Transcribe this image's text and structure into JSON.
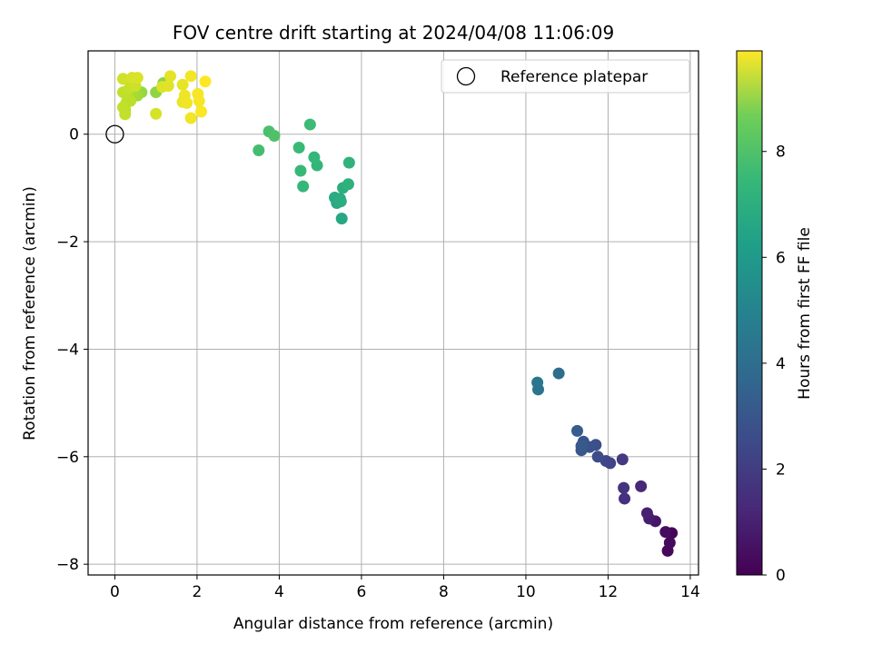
{
  "chart_data": {
    "type": "scatter",
    "title": "FOV centre drift starting at 2024/04/08 11:06:09",
    "xlabel": "Angular distance from reference (arcmin)",
    "ylabel": "Rotation from reference (arcmin)",
    "xlim": [
      -0.65,
      14.2
    ],
    "ylim": [
      -8.2,
      1.55
    ],
    "xticks": [
      0,
      2,
      4,
      6,
      8,
      10,
      12,
      14
    ],
    "yticks": [
      0,
      -2,
      -4,
      -6,
      -8
    ],
    "grid": true,
    "legend": {
      "placement": "top-right",
      "entries": [
        "Reference platepar"
      ]
    },
    "reference_point": {
      "x": 0,
      "y": 0
    },
    "colorbar": {
      "label": "Hours from first FF file",
      "range": [
        0,
        9.9
      ],
      "ticks": [
        0,
        2,
        4,
        6,
        8
      ],
      "colormap": "viridis"
    },
    "points": [
      {
        "x": 13.55,
        "y": -7.42,
        "t": 0.1
      },
      {
        "x": 13.45,
        "y": -7.75,
        "t": 0.2
      },
      {
        "x": 13.5,
        "y": -7.6,
        "t": 0.25
      },
      {
        "x": 13.4,
        "y": -7.4,
        "t": 0.35
      },
      {
        "x": 13.15,
        "y": -7.2,
        "t": 0.6
      },
      {
        "x": 13.0,
        "y": -7.15,
        "t": 0.8
      },
      {
        "x": 12.95,
        "y": -7.05,
        "t": 0.9
      },
      {
        "x": 12.8,
        "y": -6.55,
        "t": 1.1
      },
      {
        "x": 12.4,
        "y": -6.78,
        "t": 1.4
      },
      {
        "x": 12.38,
        "y": -6.58,
        "t": 1.5
      },
      {
        "x": 12.35,
        "y": -6.05,
        "t": 1.7
      },
      {
        "x": 12.05,
        "y": -6.12,
        "t": 2.0
      },
      {
        "x": 11.95,
        "y": -6.08,
        "t": 2.1
      },
      {
        "x": 11.75,
        "y": -6.0,
        "t": 2.3
      },
      {
        "x": 11.7,
        "y": -5.78,
        "t": 2.4
      },
      {
        "x": 11.55,
        "y": -5.82,
        "t": 2.5
      },
      {
        "x": 11.4,
        "y": -5.72,
        "t": 2.6
      },
      {
        "x": 11.35,
        "y": -5.88,
        "t": 2.7
      },
      {
        "x": 11.35,
        "y": -5.8,
        "t": 2.75
      },
      {
        "x": 11.25,
        "y": -5.52,
        "t": 2.9
      },
      {
        "x": 10.8,
        "y": -4.45,
        "t": 3.5
      },
      {
        "x": 10.3,
        "y": -4.75,
        "t": 3.8
      },
      {
        "x": 10.28,
        "y": -4.62,
        "t": 3.9
      },
      {
        "x": 5.52,
        "y": -1.57,
        "t": 5.9
      },
      {
        "x": 5.4,
        "y": -1.28,
        "t": 6.0
      },
      {
        "x": 5.35,
        "y": -1.18,
        "t": 6.05
      },
      {
        "x": 5.48,
        "y": -1.2,
        "t": 6.1
      },
      {
        "x": 5.5,
        "y": -1.25,
        "t": 6.15
      },
      {
        "x": 5.55,
        "y": -1.0,
        "t": 6.2
      },
      {
        "x": 5.68,
        "y": -0.93,
        "t": 6.3
      },
      {
        "x": 5.7,
        "y": -0.53,
        "t": 6.4
      },
      {
        "x": 4.92,
        "y": -0.58,
        "t": 6.5
      },
      {
        "x": 4.85,
        "y": -0.43,
        "t": 6.55
      },
      {
        "x": 4.58,
        "y": -0.97,
        "t": 6.6
      },
      {
        "x": 4.52,
        "y": -0.68,
        "t": 6.65
      },
      {
        "x": 4.48,
        "y": -0.25,
        "t": 6.7
      },
      {
        "x": 4.75,
        "y": 0.18,
        "t": 6.75
      },
      {
        "x": 3.5,
        "y": -0.3,
        "t": 6.9
      },
      {
        "x": 3.75,
        "y": 0.05,
        "t": 7.0
      },
      {
        "x": 3.88,
        "y": -0.03,
        "t": 7.1
      },
      {
        "x": 0.65,
        "y": 0.78,
        "t": 8.3
      },
      {
        "x": 1.0,
        "y": 0.78,
        "t": 8.2
      },
      {
        "x": 1.18,
        "y": 0.95,
        "t": 8.1
      },
      {
        "x": 0.55,
        "y": 0.72,
        "t": 8.5
      },
      {
        "x": 0.45,
        "y": 0.8,
        "t": 8.6
      },
      {
        "x": 0.3,
        "y": 0.72,
        "t": 8.7
      },
      {
        "x": 0.25,
        "y": 0.45,
        "t": 8.8
      },
      {
        "x": 0.28,
        "y": 0.58,
        "t": 8.9
      },
      {
        "x": 0.38,
        "y": 0.62,
        "t": 8.9
      },
      {
        "x": 0.2,
        "y": 0.5,
        "t": 9.0
      },
      {
        "x": 0.25,
        "y": 0.37,
        "t": 9.0
      },
      {
        "x": 0.2,
        "y": 0.78,
        "t": 8.95
      },
      {
        "x": 0.35,
        "y": 0.85,
        "t": 9.05
      },
      {
        "x": 0.42,
        "y": 0.96,
        "t": 9.1
      },
      {
        "x": 0.5,
        "y": 0.9,
        "t": 9.15
      },
      {
        "x": 0.2,
        "y": 1.03,
        "t": 9.2
      },
      {
        "x": 0.42,
        "y": 1.05,
        "t": 9.3
      },
      {
        "x": 0.55,
        "y": 1.05,
        "t": 9.35
      },
      {
        "x": 1.0,
        "y": 0.38,
        "t": 9.3
      },
      {
        "x": 1.15,
        "y": 0.88,
        "t": 9.4
      },
      {
        "x": 1.3,
        "y": 0.9,
        "t": 9.45
      },
      {
        "x": 1.35,
        "y": 1.08,
        "t": 9.5
      },
      {
        "x": 1.65,
        "y": 0.92,
        "t": 9.55
      },
      {
        "x": 1.65,
        "y": 0.6,
        "t": 9.6
      },
      {
        "x": 1.7,
        "y": 0.72,
        "t": 9.65
      },
      {
        "x": 1.75,
        "y": 0.58,
        "t": 9.7
      },
      {
        "x": 1.85,
        "y": 1.08,
        "t": 9.75
      },
      {
        "x": 1.85,
        "y": 0.3,
        "t": 9.7
      },
      {
        "x": 2.02,
        "y": 0.75,
        "t": 9.8
      },
      {
        "x": 2.05,
        "y": 0.62,
        "t": 9.8
      },
      {
        "x": 2.1,
        "y": 0.42,
        "t": 9.85
      },
      {
        "x": 2.2,
        "y": 0.98,
        "t": 9.9
      }
    ]
  }
}
